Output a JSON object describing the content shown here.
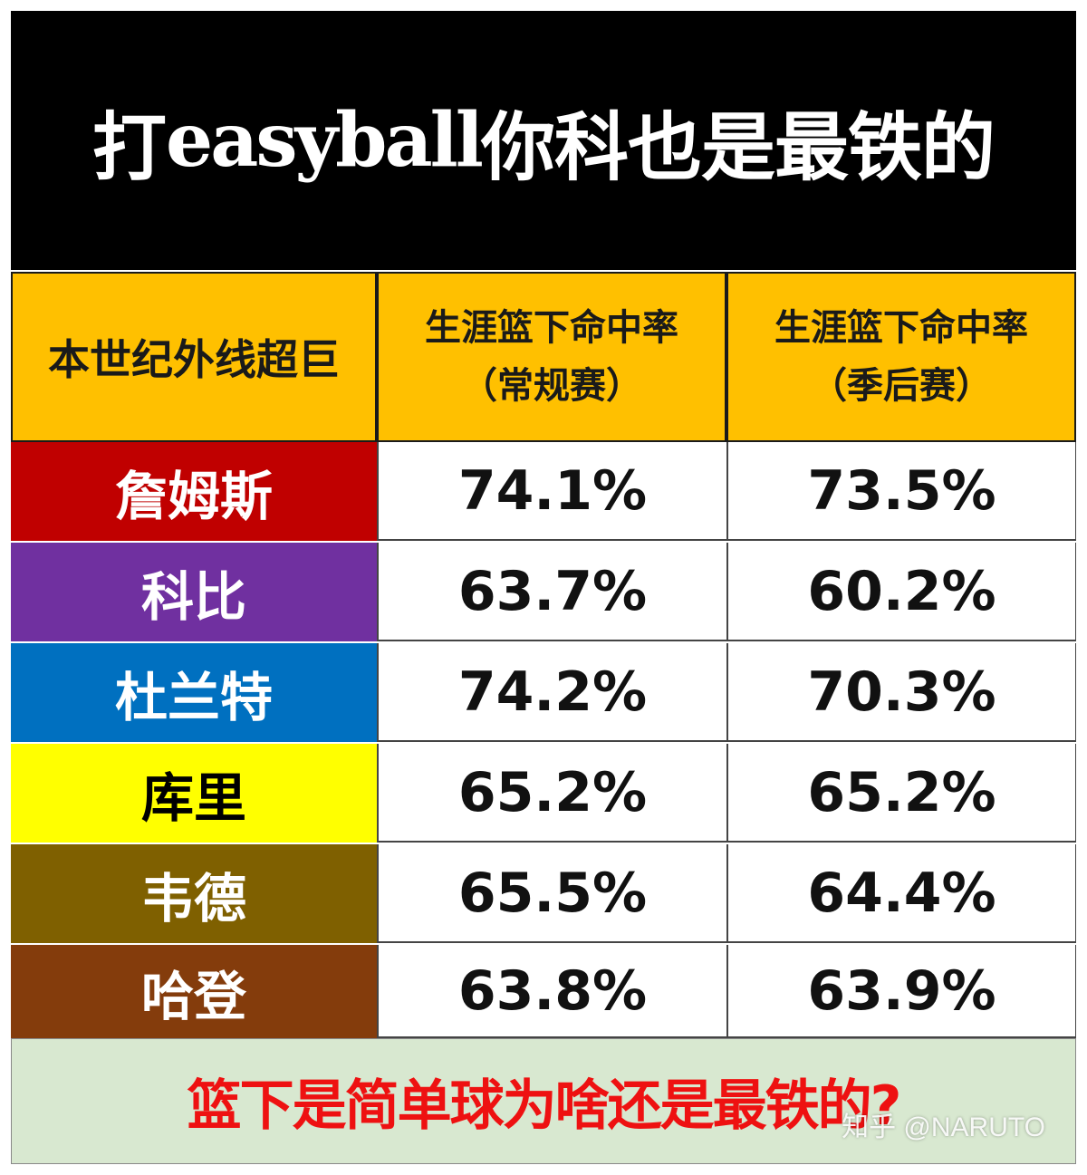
{
  "title_prefix": "打",
  "title_latin": "easyball",
  "title_suffix": "你科也是最铁的",
  "headers": {
    "col0": "本世纪外线超巨",
    "col1_line1": "生涯篮下命中率",
    "col1_line2": "（常规赛）",
    "col2_line1": "生涯篮下命中率",
    "col2_line2": "（季后赛）"
  },
  "rows": [
    {
      "name": "詹姆斯",
      "regular": "74.1%",
      "playoffs": "73.5%",
      "bg": "#c00000",
      "fg": "#ffffff"
    },
    {
      "name": "科比",
      "regular": "63.7%",
      "playoffs": "60.2%",
      "bg": "#7030a0",
      "fg": "#ffffff"
    },
    {
      "name": "杜兰特",
      "regular": "74.2%",
      "playoffs": "70.3%",
      "bg": "#0070c0",
      "fg": "#ffffff"
    },
    {
      "name": "库里",
      "regular": "65.2%",
      "playoffs": "65.2%",
      "bg": "#ffff00",
      "fg": "#000000"
    },
    {
      "name": "韦德",
      "regular": "65.5%",
      "playoffs": "64.4%",
      "bg": "#7f6000",
      "fg": "#ffffff"
    },
    {
      "name": "哈登",
      "regular": "63.8%",
      "playoffs": "63.9%",
      "bg": "#843c0c",
      "fg": "#ffffff"
    }
  ],
  "footer": "篮下是简单球为啥还是最铁的?",
  "watermark": "知乎 @NARUTO",
  "chart_data": {
    "type": "table",
    "title": "打easyball你科也是最铁的",
    "columns": [
      "本世纪外线超巨",
      "生涯篮下命中率（常规赛）",
      "生涯篮下命中率（季后赛）"
    ],
    "rows": [
      [
        "詹姆斯",
        74.1,
        73.5
      ],
      [
        "科比",
        63.7,
        60.2
      ],
      [
        "杜兰特",
        74.2,
        70.3
      ],
      [
        "库里",
        65.2,
        65.2
      ],
      [
        "韦德",
        65.5,
        64.4
      ],
      [
        "哈登",
        63.8,
        63.9
      ]
    ],
    "unit": "%"
  }
}
